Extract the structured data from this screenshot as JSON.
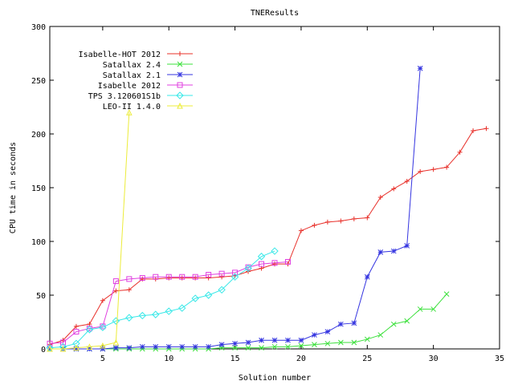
{
  "chart_data": {
    "type": "line",
    "title": "TNEResults",
    "xlabel": "Solution number",
    "ylabel": "CPU time in seconds",
    "xlim": [
      1,
      35
    ],
    "ylim": [
      0,
      300
    ],
    "xticks": [
      5,
      10,
      15,
      20,
      25,
      30,
      35
    ],
    "yticks": [
      0,
      50,
      100,
      150,
      200,
      250,
      300
    ],
    "grid": false,
    "legend_position": "top-left",
    "series": [
      {
        "name": "Isabelle-HOT 2012",
        "color": "#e8302a",
        "marker": "plus",
        "x": [
          1,
          2,
          3,
          4,
          5,
          6,
          7,
          8,
          9,
          10,
          11,
          12,
          13,
          14,
          15,
          16,
          17,
          18,
          19,
          20,
          21,
          22,
          23,
          24,
          25,
          26,
          27,
          28,
          29,
          30,
          31,
          32,
          33,
          34
        ],
        "y": [
          4,
          8,
          21,
          23,
          45,
          54,
          55,
          65,
          65,
          66,
          66,
          66,
          66,
          67,
          68,
          72,
          75,
          79,
          79,
          110,
          115,
          118,
          119,
          121,
          122,
          141,
          149,
          156,
          165,
          167,
          169,
          183,
          203,
          205
        ]
      },
      {
        "name": "Satallax 2.4",
        "color": "#3ce03c",
        "marker": "cross",
        "x": [
          1,
          2,
          3,
          4,
          5,
          6,
          7,
          8,
          9,
          10,
          11,
          12,
          13,
          14,
          15,
          16,
          17,
          18,
          19,
          20,
          21,
          22,
          23,
          24,
          25,
          26,
          27,
          28,
          29,
          30,
          31
        ],
        "y": [
          0,
          0,
          0,
          0,
          0,
          0,
          0,
          0,
          0,
          0,
          0,
          0,
          0,
          1,
          1,
          1,
          1,
          2,
          2,
          3,
          4,
          5,
          6,
          6,
          9,
          13,
          23,
          26,
          37,
          37,
          51
        ]
      },
      {
        "name": "Satallax 2.1",
        "color": "#3434e0",
        "marker": "star",
        "x": [
          1,
          2,
          3,
          4,
          5,
          6,
          7,
          8,
          9,
          10,
          11,
          12,
          13,
          14,
          15,
          16,
          17,
          18,
          19,
          20,
          21,
          22,
          23,
          24,
          25,
          26,
          27,
          28,
          29
        ],
        "y": [
          0,
          0,
          0,
          0,
          0,
          1,
          1,
          2,
          2,
          2,
          2,
          2,
          2,
          4,
          5,
          6,
          8,
          8,
          8,
          8,
          13,
          16,
          23,
          24,
          67,
          90,
          91,
          96,
          261
        ]
      },
      {
        "name": "Isabelle 2012",
        "color": "#e040e0",
        "marker": "square",
        "x": [
          1,
          2,
          3,
          4,
          5,
          6,
          7,
          8,
          9,
          10,
          11,
          12,
          13,
          14,
          15,
          16,
          17,
          18,
          19
        ],
        "y": [
          5,
          6,
          16,
          19,
          21,
          63,
          65,
          66,
          67,
          67,
          67,
          67,
          69,
          70,
          71,
          76,
          79,
          80,
          81
        ]
      },
      {
        "name": "TPS 3.120601S1b",
        "color": "#38e8e8",
        "marker": "diamond",
        "x": [
          1,
          2,
          3,
          4,
          5,
          6,
          7,
          8,
          9,
          10,
          11,
          12,
          13,
          14,
          15,
          16,
          17,
          18
        ],
        "y": [
          1,
          2,
          5,
          18,
          20,
          26,
          29,
          31,
          32,
          35,
          38,
          47,
          50,
          55,
          67,
          75,
          86,
          91
        ]
      },
      {
        "name": "LEO-II 1.4.0",
        "color": "#ecec3a",
        "marker": "triangle",
        "x": [
          1,
          2,
          3,
          4,
          5,
          6,
          7
        ],
        "y": [
          0,
          0,
          1,
          2,
          3,
          6,
          220
        ]
      }
    ]
  }
}
